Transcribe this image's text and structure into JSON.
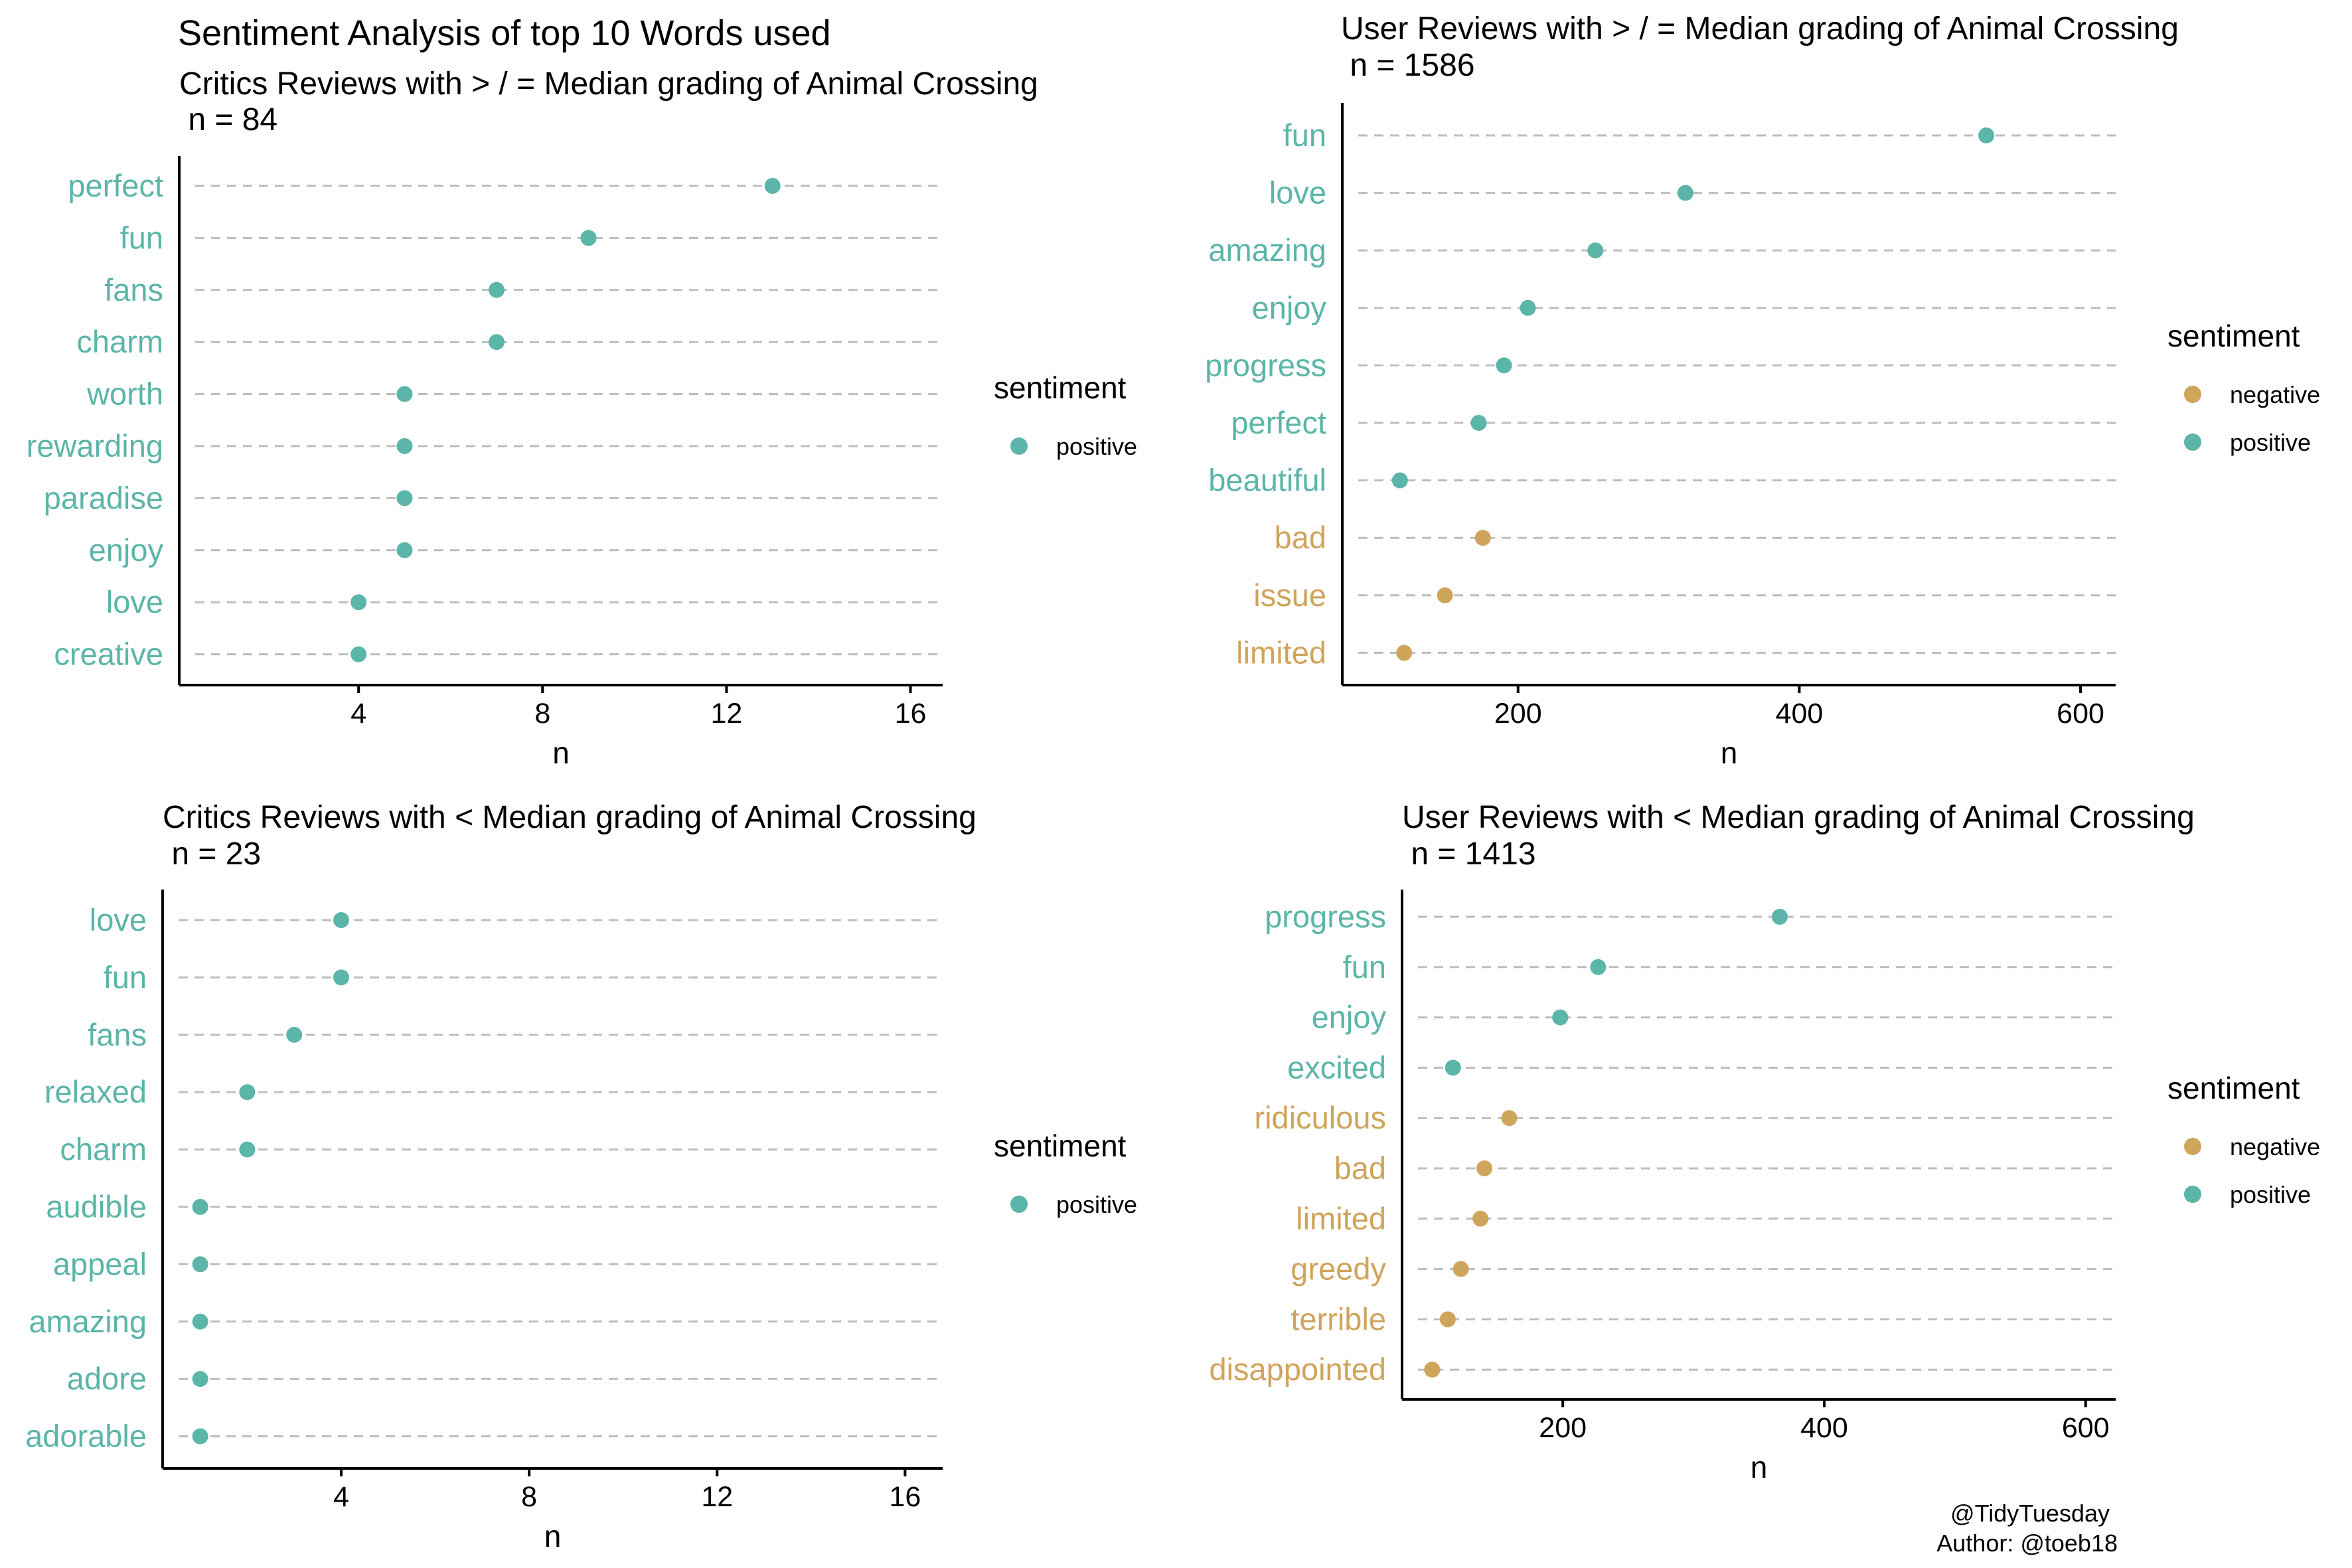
{
  "title": "Sentiment Analysis of top 10 Words used",
  "caption": [
    "@TidyTuesday",
    "Author: @toeb18"
  ],
  "colors": {
    "positive": "#5BB5A9",
    "negative": "#CFA45B",
    "grid": "#BDBDBD",
    "axis": "#000000"
  },
  "chart_data": [
    {
      "type": "scatter",
      "title": "Critics Reviews with > / = Median grading of Animal Crossing",
      "subtitle": " n = 84",
      "xlabel": "n",
      "ylabel": "",
      "xlim": [
        0.1,
        16.7
      ],
      "xticks": [
        4,
        8,
        12,
        16
      ],
      "grid": "dashed horizontal",
      "legend": {
        "title": "sentiment",
        "placement": "right",
        "entries": [
          "positive"
        ]
      },
      "categories": [
        "perfect",
        "fun",
        "fans",
        "charm",
        "worth",
        "rewarding",
        "paradise",
        "enjoy",
        "love",
        "creative"
      ],
      "values": [
        13,
        9,
        7,
        7,
        5,
        5,
        5,
        5,
        4,
        4
      ],
      "sentiments": [
        "positive",
        "positive",
        "positive",
        "positive",
        "positive",
        "positive",
        "positive",
        "positive",
        "positive",
        "positive"
      ]
    },
    {
      "type": "scatter",
      "title": "User Reviews with > / = Median grading of Animal Crossing",
      "subtitle": " n = 1586",
      "xlabel": "n",
      "ylabel": "",
      "xlim": [
        75,
        625
      ],
      "xticks": [
        200,
        400,
        600
      ],
      "grid": "dashed horizontal",
      "legend": {
        "title": "sentiment",
        "placement": "right",
        "entries": [
          "negative",
          "positive"
        ]
      },
      "categories": [
        "fun",
        "love",
        "amazing",
        "enjoy",
        "progress",
        "perfect",
        "beautiful",
        "bad",
        "issue",
        "limited"
      ],
      "values": [
        533,
        319,
        255,
        207,
        190,
        172,
        116,
        175,
        148,
        119
      ],
      "sentiments": [
        "positive",
        "positive",
        "positive",
        "positive",
        "positive",
        "positive",
        "positive",
        "negative",
        "negative",
        "negative"
      ]
    },
    {
      "type": "scatter",
      "title": "Critics Reviews with < Median grading of Animal Crossing",
      "subtitle": " n = 23",
      "xlabel": "n",
      "ylabel": "",
      "xlim": [
        0.2,
        16.8
      ],
      "xticks": [
        4,
        8,
        12,
        16
      ],
      "grid": "dashed horizontal",
      "legend": {
        "title": "sentiment",
        "placement": "right",
        "entries": [
          "positive"
        ]
      },
      "categories": [
        "love",
        "fun",
        "fans",
        "relaxed",
        "charm",
        "audible",
        "appeal",
        "amazing",
        "adore",
        "adorable"
      ],
      "values": [
        4,
        4,
        3,
        2,
        2,
        1,
        1,
        1,
        1,
        1
      ],
      "sentiments": [
        "positive",
        "positive",
        "positive",
        "positive",
        "positive",
        "positive",
        "positive",
        "positive",
        "positive",
        "positive"
      ]
    },
    {
      "type": "scatter",
      "title": "User Reviews with < Median grading of Animal Crossing",
      "subtitle": " n = 1413",
      "xlabel": "n",
      "ylabel": "",
      "xlim": [
        77,
        623
      ],
      "xticks": [
        200,
        400,
        600
      ],
      "grid": "dashed horizontal",
      "legend": {
        "title": "sentiment",
        "placement": "right",
        "entries": [
          "negative",
          "positive"
        ]
      },
      "categories": [
        "progress",
        "fun",
        "enjoy",
        "excited",
        "ridiculous",
        "bad",
        "limited",
        "greedy",
        "terrible",
        "disappointed"
      ],
      "values": [
        366,
        227,
        198,
        116,
        159,
        140,
        137,
        122,
        112,
        100
      ],
      "sentiments": [
        "positive",
        "positive",
        "positive",
        "positive",
        "negative",
        "negative",
        "negative",
        "negative",
        "negative",
        "negative"
      ]
    }
  ]
}
